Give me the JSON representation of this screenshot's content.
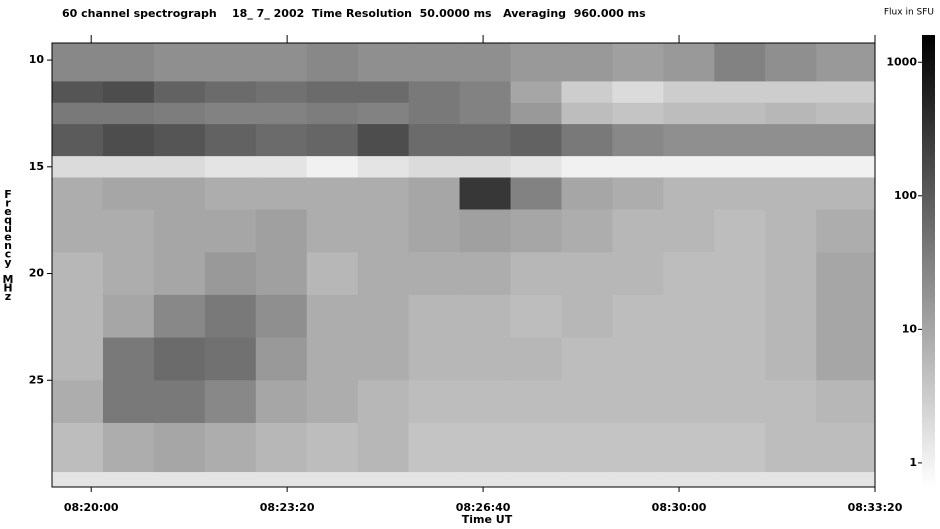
{
  "chart_data": {
    "type": "heatmap",
    "title": "60 channel spectrograph    18_ 7_ 2002  Time Resolution  50.0000 ms   Averaging  960.000 ms",
    "colorbar_label": "Flux in SFU",
    "x_label": "Time UT",
    "y_label": "Frequency MHz",
    "xlim": [
      29960,
      30800
    ],
    "xticks": [
      {
        "value": 30000,
        "label": "08:20:00"
      },
      {
        "value": 30200,
        "label": "08:23:20"
      },
      {
        "value": 30400,
        "label": "08:26:40"
      },
      {
        "value": 30600,
        "label": "08:30:00"
      },
      {
        "value": 30800,
        "label": "08:33:20"
      }
    ],
    "ylim": [
      9.2,
      30
    ],
    "y_inverted": true,
    "yticks": [
      10,
      15,
      20,
      25
    ],
    "zlim": [
      0.66,
      1600
    ],
    "zticks": [
      1,
      10,
      100,
      1000
    ],
    "z_log": true,
    "colormap": "gray_reversed",
    "xbins": [
      29960,
      30012,
      30064,
      30116,
      30168,
      30220,
      30272,
      30324,
      30376,
      30428,
      30480,
      30532,
      30584,
      30636,
      30688,
      30740,
      30800
    ],
    "ybins": [
      9.2,
      11,
      12,
      13,
      14.5,
      15.5,
      17,
      19,
      21,
      23,
      25,
      27,
      29.3,
      30
    ],
    "z": [
      [
        25,
        25,
        20,
        20,
        20,
        25,
        20,
        20,
        20,
        15,
        15,
        12,
        15,
        30,
        20,
        15
      ],
      [
        120,
        150,
        80,
        60,
        50,
        60,
        60,
        40,
        30,
        10,
        3,
        2,
        3,
        3,
        3,
        3
      ],
      [
        40,
        40,
        35,
        30,
        30,
        35,
        30,
        40,
        30,
        15,
        5,
        4,
        5,
        5,
        6,
        5
      ],
      [
        100,
        150,
        120,
        80,
        60,
        70,
        150,
        60,
        60,
        80,
        40,
        25,
        20,
        20,
        20,
        20
      ],
      [
        2,
        2,
        2,
        1.5,
        1.5,
        1,
        1.5,
        2,
        2,
        1.5,
        1,
        1,
        1,
        1,
        1,
        1
      ],
      [
        8,
        10,
        10,
        8,
        8,
        8,
        8,
        10,
        300,
        30,
        10,
        8,
        6,
        6,
        6,
        6
      ],
      [
        8,
        8,
        10,
        10,
        12,
        8,
        8,
        10,
        12,
        10,
        8,
        6,
        6,
        5,
        6,
        8
      ],
      [
        6,
        8,
        10,
        15,
        12,
        6,
        8,
        8,
        8,
        6,
        6,
        6,
        5,
        5,
        6,
        10
      ],
      [
        6,
        10,
        25,
        40,
        20,
        8,
        8,
        6,
        6,
        5,
        6,
        5,
        5,
        5,
        6,
        10
      ],
      [
        6,
        40,
        60,
        50,
        15,
        8,
        8,
        6,
        6,
        6,
        5,
        5,
        5,
        5,
        6,
        10
      ],
      [
        8,
        40,
        40,
        25,
        10,
        8,
        6,
        5,
        5,
        5,
        5,
        5,
        5,
        5,
        5,
        6
      ],
      [
        5,
        8,
        10,
        8,
        6,
        5,
        6,
        4,
        4,
        4,
        4,
        4,
        4,
        4,
        5,
        5
      ],
      [
        1.5,
        1.5,
        1.5,
        1.5,
        1.5,
        1.5,
        1.5,
        1.5,
        1.5,
        1.5,
        1.5,
        1.5,
        1.5,
        1.5,
        1.5,
        1.5
      ]
    ]
  }
}
